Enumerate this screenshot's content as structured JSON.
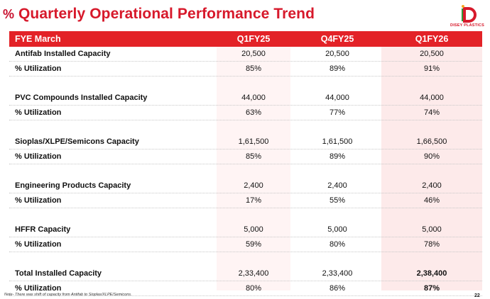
{
  "header": {
    "title": "Quarterly Operational Performance Trend",
    "logo_text": "DISEY PLASTICS",
    "accent": "#e32227"
  },
  "table": {
    "columns": [
      "FYE March",
      "Q1FY25",
      "Q4FY25",
      "Q1FY26"
    ],
    "groups": [
      {
        "capacity": {
          "label": "Antifab Installed Capacity",
          "values": [
            "20,500",
            "20,500",
            "20,500"
          ]
        },
        "utilization": {
          "label": "% Utilization",
          "values": [
            "85%",
            "89%",
            "91%"
          ]
        }
      },
      {
        "capacity": {
          "label": "PVC Compounds Installed Capacity",
          "values": [
            "44,000",
            "44,000",
            "44,000"
          ]
        },
        "utilization": {
          "label": "% Utilization",
          "values": [
            "63%",
            "77%",
            "74%"
          ]
        }
      },
      {
        "capacity": {
          "label": "Sioplas/XLPE/Semicons Capacity",
          "values": [
            "1,61,500",
            "1,61,500",
            "1,66,500"
          ]
        },
        "utilization": {
          "label": "% Utilization",
          "values": [
            "85%",
            "89%",
            "90%"
          ]
        }
      },
      {
        "capacity": {
          "label": "Engineering Products Capacity",
          "values": [
            "2,400",
            "2,400",
            "2,400"
          ]
        },
        "utilization": {
          "label": "% Utilization",
          "values": [
            "17%",
            "55%",
            "46%"
          ]
        }
      },
      {
        "capacity": {
          "label": "HFFR Capacity",
          "values": [
            "5,000",
            "5,000",
            "5,000"
          ]
        },
        "utilization": {
          "label": "% Utilization",
          "values": [
            "59%",
            "80%",
            "78%"
          ]
        }
      },
      {
        "capacity": {
          "label": "Total Installed Capacity",
          "values": [
            "2,33,400",
            "2,33,400",
            "2,38,400"
          ]
        },
        "utilization": {
          "label": "% Utilization",
          "values": [
            "80%",
            "86%",
            "87%"
          ]
        }
      }
    ]
  },
  "footer": {
    "note": "Note- There was shift of capacity from Antifab to Sioplas/XLPE/Semicons.",
    "page_number": "22"
  }
}
